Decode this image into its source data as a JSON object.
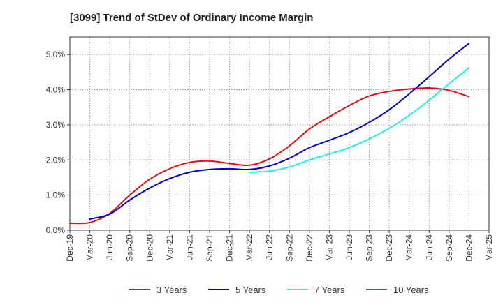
{
  "chart_data": {
    "type": "line",
    "title": "[3099]  Trend of StDev of Ordinary Income Margin",
    "xlabel": "",
    "ylabel": "",
    "x": [
      "Dec-19",
      "Mar-20",
      "Jun-20",
      "Sep-20",
      "Dec-20",
      "Mar-21",
      "Jun-21",
      "Sep-21",
      "Dec-21",
      "Mar-22",
      "Jun-22",
      "Sep-22",
      "Dec-22",
      "Mar-23",
      "Jun-23",
      "Sep-23",
      "Dec-23",
      "Mar-24",
      "Jun-24",
      "Sep-24",
      "Dec-24",
      "Mar-25"
    ],
    "ylim": [
      0,
      5.5
    ],
    "yticks": [
      0,
      1,
      2,
      3,
      4,
      5
    ],
    "ytick_labels": [
      "0.0%",
      "1.0%",
      "2.0%",
      "3.0%",
      "4.0%",
      "5.0%"
    ],
    "grid": true,
    "legend_position": "bottom",
    "series": [
      {
        "name": "3 Years",
        "color": "#dd1111",
        "values": [
          0.2,
          0.22,
          0.48,
          1.0,
          1.45,
          1.75,
          1.93,
          1.97,
          1.9,
          1.85,
          2.03,
          2.4,
          2.88,
          3.23,
          3.55,
          3.82,
          3.95,
          4.02,
          4.05,
          3.98,
          3.8,
          null
        ]
      },
      {
        "name": "5 Years",
        "color": "#0000cc",
        "values": [
          null,
          0.32,
          0.46,
          0.86,
          1.2,
          1.47,
          1.65,
          1.73,
          1.75,
          1.73,
          1.83,
          2.05,
          2.35,
          2.56,
          2.78,
          3.07,
          3.43,
          3.88,
          4.37,
          4.87,
          5.32,
          null
        ]
      },
      {
        "name": "7 Years",
        "color": "#22eeee",
        "values": [
          null,
          null,
          null,
          null,
          null,
          null,
          null,
          null,
          null,
          1.65,
          1.68,
          1.8,
          2.0,
          2.17,
          2.35,
          2.6,
          2.9,
          3.27,
          3.7,
          4.17,
          4.62,
          null
        ]
      },
      {
        "name": "10 Years",
        "color": "#228822",
        "values": [
          null,
          null,
          null,
          null,
          null,
          null,
          null,
          null,
          null,
          null,
          null,
          null,
          null,
          null,
          null,
          null,
          null,
          null,
          null,
          null,
          null,
          null
        ]
      }
    ]
  }
}
